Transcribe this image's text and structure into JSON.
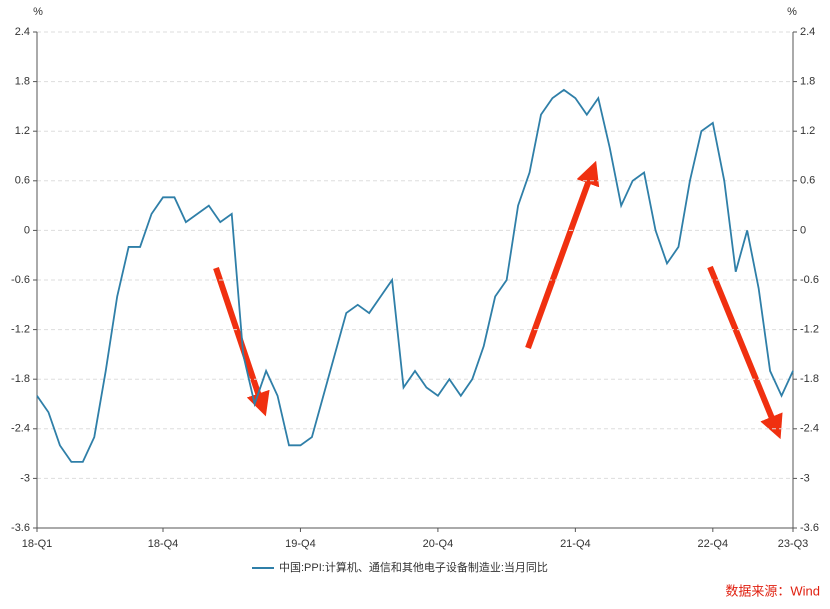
{
  "chart_data": {
    "type": "line",
    "y_unit": "%",
    "y2_unit": "%",
    "categories": [
      "18-Q1",
      null,
      null,
      null,
      null,
      null,
      null,
      null,
      null,
      null,
      null,
      "18-Q4",
      null,
      null,
      null,
      null,
      null,
      null,
      null,
      null,
      null,
      null,
      null,
      "19-Q4",
      null,
      null,
      null,
      null,
      null,
      null,
      null,
      null,
      null,
      null,
      null,
      "20-Q4",
      null,
      null,
      null,
      null,
      null,
      null,
      null,
      null,
      null,
      null,
      null,
      "21-Q4",
      null,
      null,
      null,
      null,
      null,
      null,
      null,
      null,
      null,
      null,
      null,
      "22-Q4",
      null,
      null,
      null,
      null,
      null,
      null,
      "23-Q3"
    ],
    "series": [
      {
        "name": "中国:PPI:计算机、通信和其他电子设备制造业:当月同比",
        "color": "#2f7fa8",
        "values": [
          -2.0,
          -2.2,
          -2.6,
          -2.8,
          -2.8,
          -2.5,
          -1.7,
          -0.8,
          -0.2,
          -0.2,
          0.2,
          0.4,
          0.4,
          0.1,
          0.2,
          0.3,
          0.1,
          0.2,
          -1.5,
          -2.1,
          -1.7,
          -2.0,
          -2.6,
          -2.6,
          -2.5,
          -2.0,
          -1.5,
          -1.0,
          -0.9,
          -1.0,
          -0.8,
          -0.6,
          -1.9,
          -1.7,
          -1.9,
          -2.0,
          -1.8,
          -2.0,
          -1.8,
          -1.4,
          -0.8,
          -0.6,
          0.3,
          0.7,
          1.4,
          1.6,
          1.7,
          1.6,
          1.4,
          1.6,
          1.0,
          0.3,
          0.6,
          0.7,
          0.0,
          -0.4,
          -0.2,
          0.6,
          1.2,
          1.3,
          0.6,
          -0.5,
          0.0,
          -0.7,
          -1.7,
          -2.0,
          -1.7
        ]
      }
    ],
    "ylim": [
      -3.6,
      2.4
    ],
    "yticks": [
      2.4,
      1.8,
      1.2,
      0.6,
      0,
      -0.6,
      -1.2,
      -1.8,
      -2.4,
      -3,
      -3.6
    ],
    "y2lim": [
      -3.6,
      2.4
    ],
    "y2ticks": [
      2.4,
      1.8,
      1.2,
      0.6,
      0,
      -0.6,
      -1.2,
      -1.8,
      -2.4,
      -3,
      -3.6
    ],
    "grid": true,
    "legend": "bottom",
    "source": "数据来源：Wind"
  }
}
